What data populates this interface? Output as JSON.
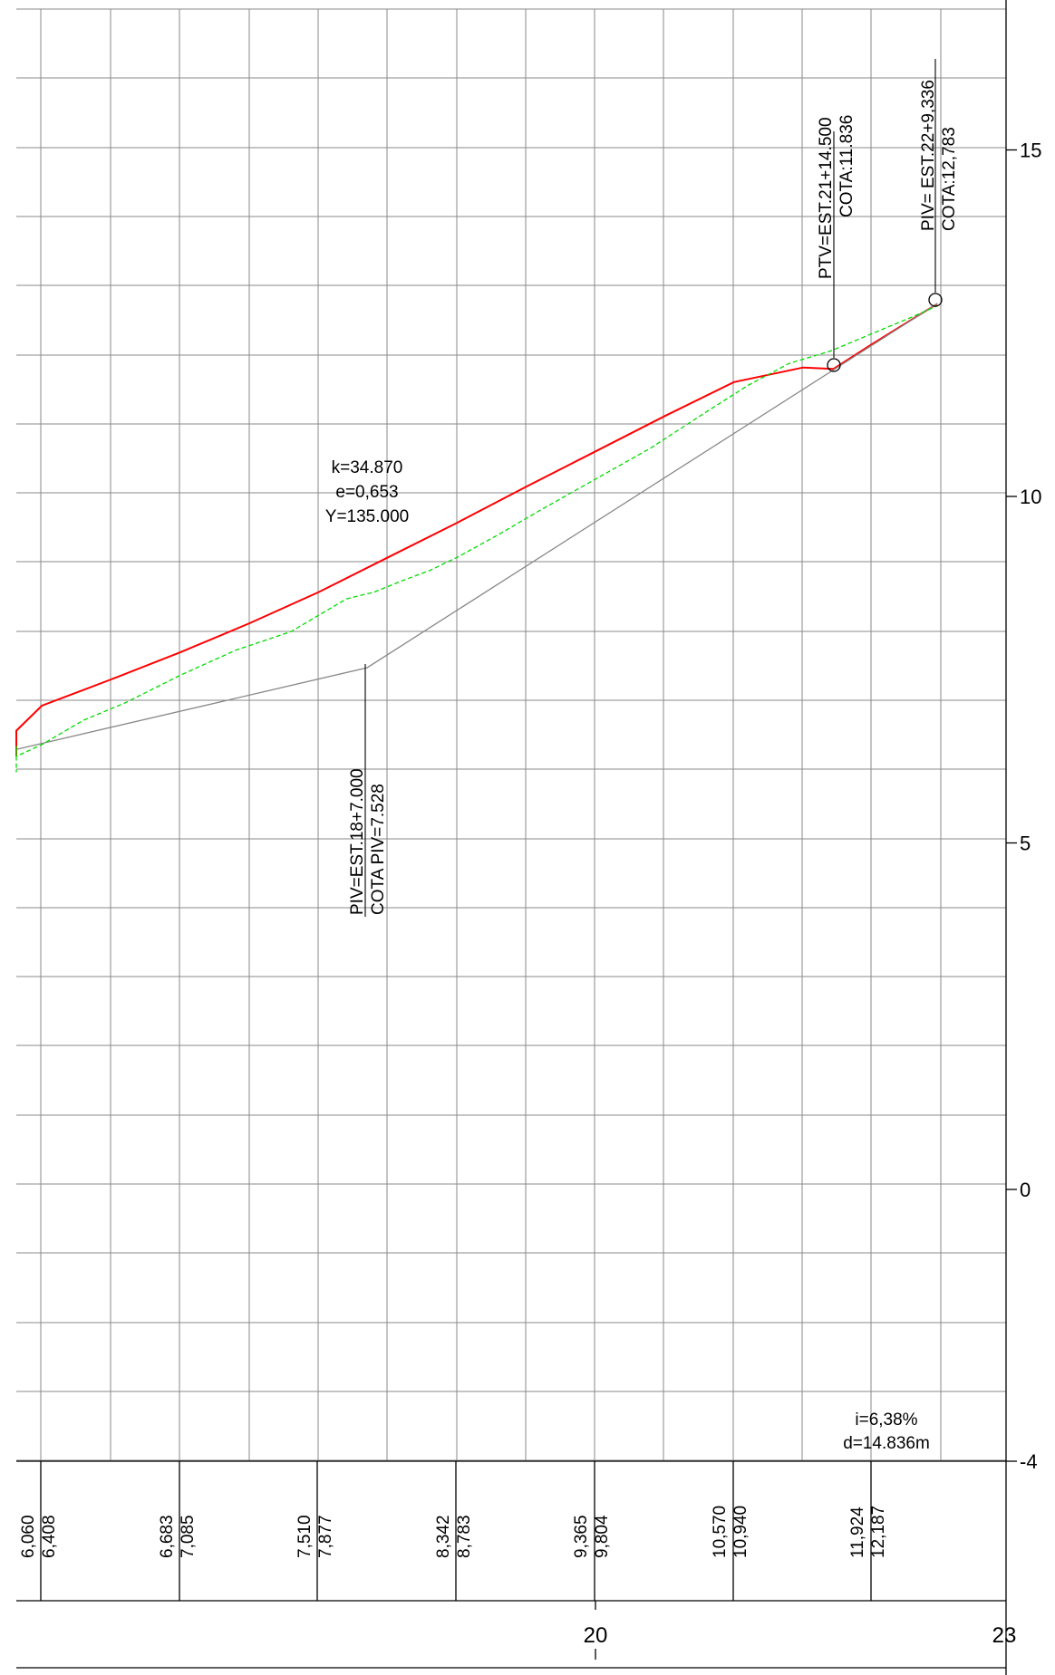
{
  "axis": {
    "right_ticks": [
      {
        "value": 15,
        "label": "15"
      },
      {
        "value": 10,
        "label": "10"
      },
      {
        "value": 5,
        "label": "5"
      },
      {
        "value": 0,
        "label": "0"
      },
      {
        "value": -4,
        "label": "-4"
      }
    ],
    "station_ticks": [
      {
        "station": 20,
        "label": "20"
      },
      {
        "station": 23,
        "label": "23"
      }
    ]
  },
  "annotations": {
    "curve_params": {
      "k": "k=34.870",
      "e": "e=0,653",
      "y": "Y=135.000"
    },
    "piv_mid": {
      "station": "PIV=EST.18+7.000",
      "elevation": "COTA PIV=7.528"
    },
    "ptv": {
      "station": "PTV=EST.21+14.500",
      "elevation": "COTA:11.836"
    },
    "piv_end": {
      "station": "PIV= EST.22+9,336",
      "elevation": "COTA:12,783"
    },
    "grade": {
      "slope": "i=6,38%",
      "distance": "d=14.836m"
    }
  },
  "band_values": [
    "6,060",
    "6,408",
    "6,683",
    "7,085",
    "7,510",
    "7,877",
    "8,342",
    "8,783",
    "9,365",
    "9,804",
    "10,570",
    "10,940",
    "11,924",
    "12,187"
  ],
  "chart_data": {
    "type": "line",
    "x_unit": "station",
    "y_unit": "elevation (m)",
    "ylim": [
      -4,
      17
    ],
    "grid": true,
    "series": [
      {
        "color": "#ff0000",
        "style": "solid",
        "x": [
          15.0,
          15.5,
          16.0,
          16.5,
          17.0,
          17.5,
          18.0,
          18.5,
          19.0,
          19.5,
          20.0,
          20.5,
          21.0,
          21.5,
          21.72,
          22.0,
          22.47
        ],
        "y": [
          6.25,
          6.62,
          6.98,
          7.36,
          7.75,
          8.17,
          8.62,
          9.12,
          9.62,
          10.14,
          10.65,
          11.16,
          11.65,
          11.86,
          11.84,
          12.2,
          12.78
        ]
      },
      {
        "color": "#888888",
        "style": "solid",
        "x": [
          15.0,
          18.35,
          22.47
        ],
        "y": [
          6.35,
          7.528,
          12.783
        ]
      },
      {
        "color": "#00dd00",
        "style": "dashed",
        "x": [
          15.0,
          15.18,
          15.4,
          15.6,
          15.7,
          15.8,
          16.0,
          16.3,
          16.6,
          17.0,
          17.4,
          17.8,
          18.2,
          18.4,
          18.6,
          18.8,
          19.0,
          19.3,
          19.6,
          20.0,
          20.4,
          20.8,
          21.1,
          21.4,
          21.7,
          22.0,
          22.3,
          22.47
        ],
        "y": [
          6.06,
          6.02,
          6.24,
          6.3,
          6.4,
          6.25,
          6.42,
          6.77,
          7.02,
          7.42,
          7.78,
          8.05,
          8.52,
          8.62,
          8.78,
          8.93,
          9.12,
          9.45,
          9.8,
          10.25,
          10.7,
          11.22,
          11.6,
          11.92,
          12.1,
          12.35,
          12.6,
          12.75
        ]
      }
    ]
  }
}
